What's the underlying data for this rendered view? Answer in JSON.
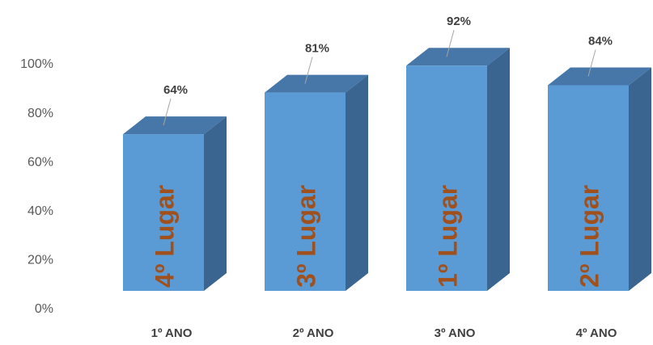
{
  "chart_data": {
    "type": "bar3d",
    "categories": [
      "1º ANO",
      "2º ANO",
      "3º ANO",
      "4º ANO"
    ],
    "values": [
      64,
      81,
      92,
      84
    ],
    "value_labels": [
      "64%",
      "81%",
      "92%",
      "84%"
    ],
    "bar_annotations": [
      "4º Lugar",
      "3º Lugar",
      "1º Lugar",
      "2º Lugar"
    ],
    "colors": {
      "front": "#5b9bd5",
      "side": "#3b6591",
      "top": "#4677a8",
      "annotation": "#a0501c"
    },
    "ylim": [
      0,
      100
    ],
    "yticks": [
      {
        "value": 0,
        "label": "0%"
      },
      {
        "value": 20,
        "label": "20%"
      },
      {
        "value": 40,
        "label": "40%"
      },
      {
        "value": 60,
        "label": "60%"
      },
      {
        "value": 80,
        "label": "80%"
      },
      {
        "value": 100,
        "label": "100%"
      }
    ]
  }
}
